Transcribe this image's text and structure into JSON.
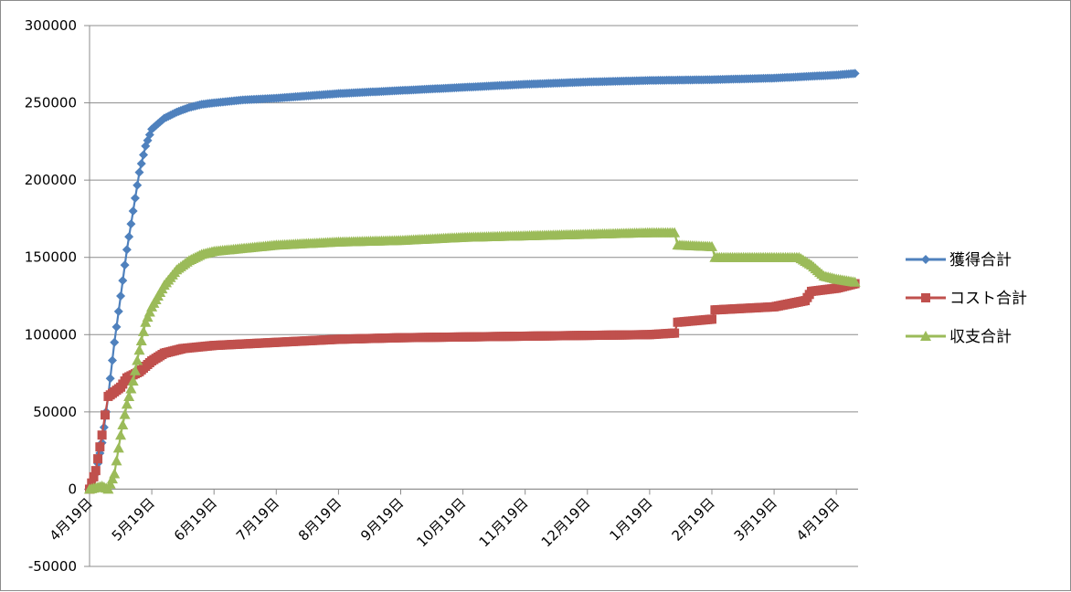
{
  "chart_data": {
    "type": "line",
    "title": "",
    "xlabel": "",
    "ylabel": "",
    "x_tick_labels": [
      "4月19日",
      "5月19日",
      "6月19日",
      "7月19日",
      "8月19日",
      "9月19日",
      "10月19日",
      "11月19日",
      "12月19日",
      "1月19日",
      "2月19日",
      "3月19日",
      "4月19日"
    ],
    "ylim": [
      -50000,
      300000
    ],
    "y_ticks": [
      -50000,
      0,
      50000,
      100000,
      150000,
      200000,
      250000,
      300000
    ],
    "grid": true,
    "legend_position": "right",
    "x_unit": "months since 4月19日",
    "series": [
      {
        "name": "獲得合計",
        "color": "#4f81bd",
        "marker": "diamond",
        "points": [
          [
            0,
            0
          ],
          [
            0.1,
            10000
          ],
          [
            0.2,
            30000
          ],
          [
            0.3,
            60000
          ],
          [
            0.4,
            95000
          ],
          [
            0.5,
            125000
          ],
          [
            0.6,
            155000
          ],
          [
            0.7,
            180000
          ],
          [
            0.8,
            205000
          ],
          [
            0.9,
            222000
          ],
          [
            1.0,
            233000
          ],
          [
            1.2,
            240000
          ],
          [
            1.4,
            244000
          ],
          [
            1.6,
            247000
          ],
          [
            1.8,
            249000
          ],
          [
            2.0,
            250000
          ],
          [
            2.5,
            252000
          ],
          [
            3,
            253000
          ],
          [
            4,
            256000
          ],
          [
            5,
            258000
          ],
          [
            6,
            260000
          ],
          [
            7,
            262000
          ],
          [
            8,
            263500
          ],
          [
            9,
            264500
          ],
          [
            10,
            265000
          ],
          [
            11,
            266000
          ],
          [
            12,
            268000
          ],
          [
            12.3,
            269000
          ]
        ]
      },
      {
        "name": "コスト合計",
        "color": "#c0504d",
        "marker": "square",
        "points": [
          [
            0,
            0
          ],
          [
            0.1,
            12000
          ],
          [
            0.2,
            35000
          ],
          [
            0.25,
            48000
          ],
          [
            0.3,
            60000
          ],
          [
            0.5,
            66000
          ],
          [
            0.6,
            72000
          ],
          [
            0.8,
            76000
          ],
          [
            1.0,
            83000
          ],
          [
            1.2,
            88000
          ],
          [
            1.5,
            91000
          ],
          [
            2,
            93000
          ],
          [
            3,
            95000
          ],
          [
            4,
            97000
          ],
          [
            5,
            98000
          ],
          [
            6,
            98500
          ],
          [
            7,
            99000
          ],
          [
            8,
            99500
          ],
          [
            9,
            100000
          ],
          [
            9.4,
            101000
          ],
          [
            9.45,
            108000
          ],
          [
            10.0,
            110000
          ],
          [
            10.05,
            116000
          ],
          [
            11,
            118000
          ],
          [
            11.5,
            122000
          ],
          [
            11.6,
            128000
          ],
          [
            12,
            130000
          ],
          [
            12.3,
            133000
          ]
        ]
      },
      {
        "name": "収支合計",
        "color": "#9bbb59",
        "marker": "triangle",
        "points": [
          [
            0,
            0
          ],
          [
            0.2,
            2000
          ],
          [
            0.3,
            0
          ],
          [
            0.4,
            10000
          ],
          [
            0.5,
            35000
          ],
          [
            0.6,
            55000
          ],
          [
            0.7,
            70000
          ],
          [
            0.8,
            90000
          ],
          [
            0.9,
            108000
          ],
          [
            1.0,
            118000
          ],
          [
            1.2,
            132000
          ],
          [
            1.4,
            142000
          ],
          [
            1.6,
            148000
          ],
          [
            1.8,
            152000
          ],
          [
            2,
            154000
          ],
          [
            3,
            158000
          ],
          [
            4,
            160000
          ],
          [
            5,
            161000
          ],
          [
            6,
            163000
          ],
          [
            7,
            164000
          ],
          [
            8,
            165000
          ],
          [
            9,
            166000
          ],
          [
            9.4,
            166000
          ],
          [
            9.45,
            158000
          ],
          [
            10,
            157000
          ],
          [
            10.05,
            150000
          ],
          [
            11,
            150000
          ],
          [
            11.4,
            150000
          ],
          [
            11.6,
            145000
          ],
          [
            11.8,
            138000
          ],
          [
            12,
            136000
          ],
          [
            12.3,
            134000
          ]
        ]
      }
    ]
  }
}
